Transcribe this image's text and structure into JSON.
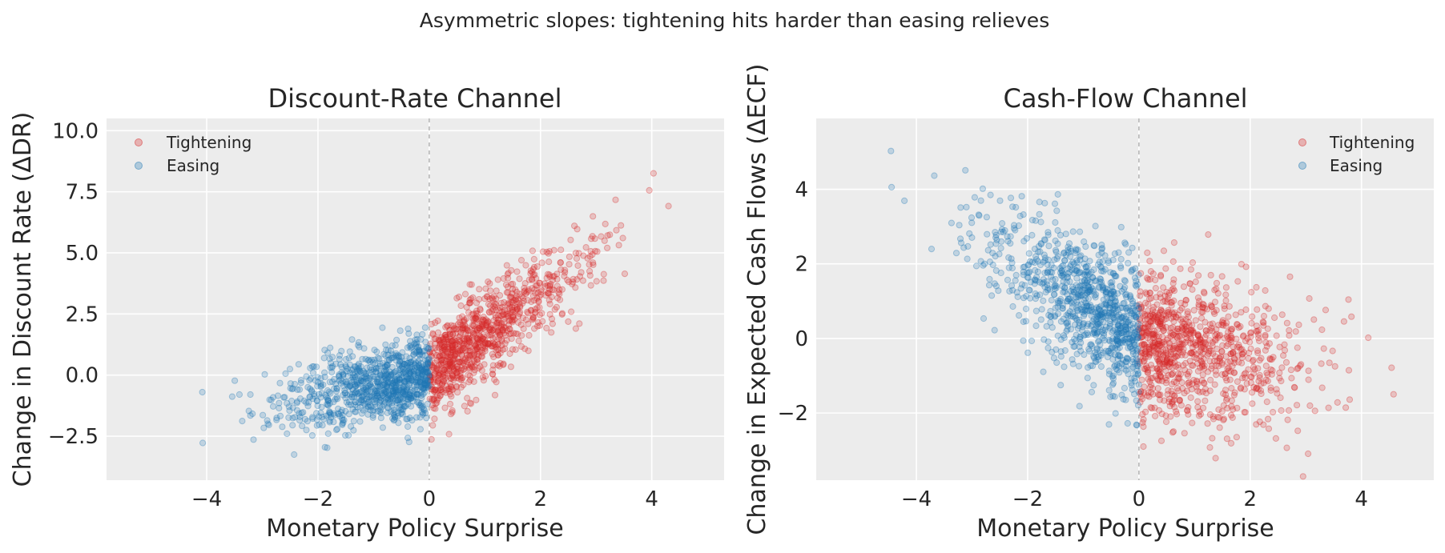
{
  "suptitle": "Asymmetric slopes: tightening hits harder than easing relieves",
  "colors": {
    "tightening": "#d62728",
    "easing": "#1f77b4",
    "background": "#ececec"
  },
  "chart_data": [
    {
      "type": "scatter",
      "title": "Discount-Rate Channel",
      "xlabel": "Monetary Policy Surprise",
      "ylabel": "Change in Discount Rate (ΔDR)",
      "xlim": [
        -5.8,
        5.3
      ],
      "ylim": [
        -4.3,
        10.5
      ],
      "xticks": [
        -4,
        -2,
        0,
        2,
        4
      ],
      "xtick_labels": [
        "−4",
        "−2",
        "0",
        "2",
        "4"
      ],
      "yticks": [
        -2.5,
        0,
        2.5,
        5,
        7.5,
        10
      ],
      "ytick_labels": [
        "−2.5",
        "0.0",
        "2.5",
        "5.0",
        "7.5",
        "10.0"
      ],
      "vline_x": 0,
      "legend_position": "upper-left",
      "series": [
        {
          "name": "Tightening",
          "color_key": "tightening",
          "domain": [
            0,
            4.9
          ],
          "slope": 1.7,
          "intercept": 0.0,
          "noise": 0.9,
          "count": 900
        },
        {
          "name": "Easing",
          "color_key": "easing",
          "domain": [
            -5.5,
            0
          ],
          "slope": 0.45,
          "intercept": 0.0,
          "noise": 0.8,
          "count": 900
        }
      ]
    },
    {
      "type": "scatter",
      "title": "Cash-Flow Channel",
      "xlabel": "Monetary Policy Surprise",
      "ylabel": "Change in Expected Cash Flows (ΔECF)",
      "xlim": [
        -5.8,
        5.3
      ],
      "ylim": [
        -3.8,
        5.9
      ],
      "xticks": [
        -4,
        -2,
        0,
        2,
        4
      ],
      "xtick_labels": [
        "−4",
        "−2",
        "0",
        "2",
        "4"
      ],
      "yticks": [
        -2,
        0,
        2,
        4
      ],
      "ytick_labels": [
        "−2",
        "0",
        "2",
        "4"
      ],
      "vline_x": 0,
      "legend_position": "upper-right",
      "series": [
        {
          "name": "Tightening",
          "color_key": "tightening",
          "domain": [
            0,
            4.9
          ],
          "slope": -0.3,
          "intercept": 0.0,
          "noise": 1.0,
          "count": 900
        },
        {
          "name": "Easing",
          "color_key": "easing",
          "domain": [
            -5.5,
            0
          ],
          "slope": -0.9,
          "intercept": 0.0,
          "noise": 0.9,
          "count": 900
        }
      ]
    }
  ]
}
